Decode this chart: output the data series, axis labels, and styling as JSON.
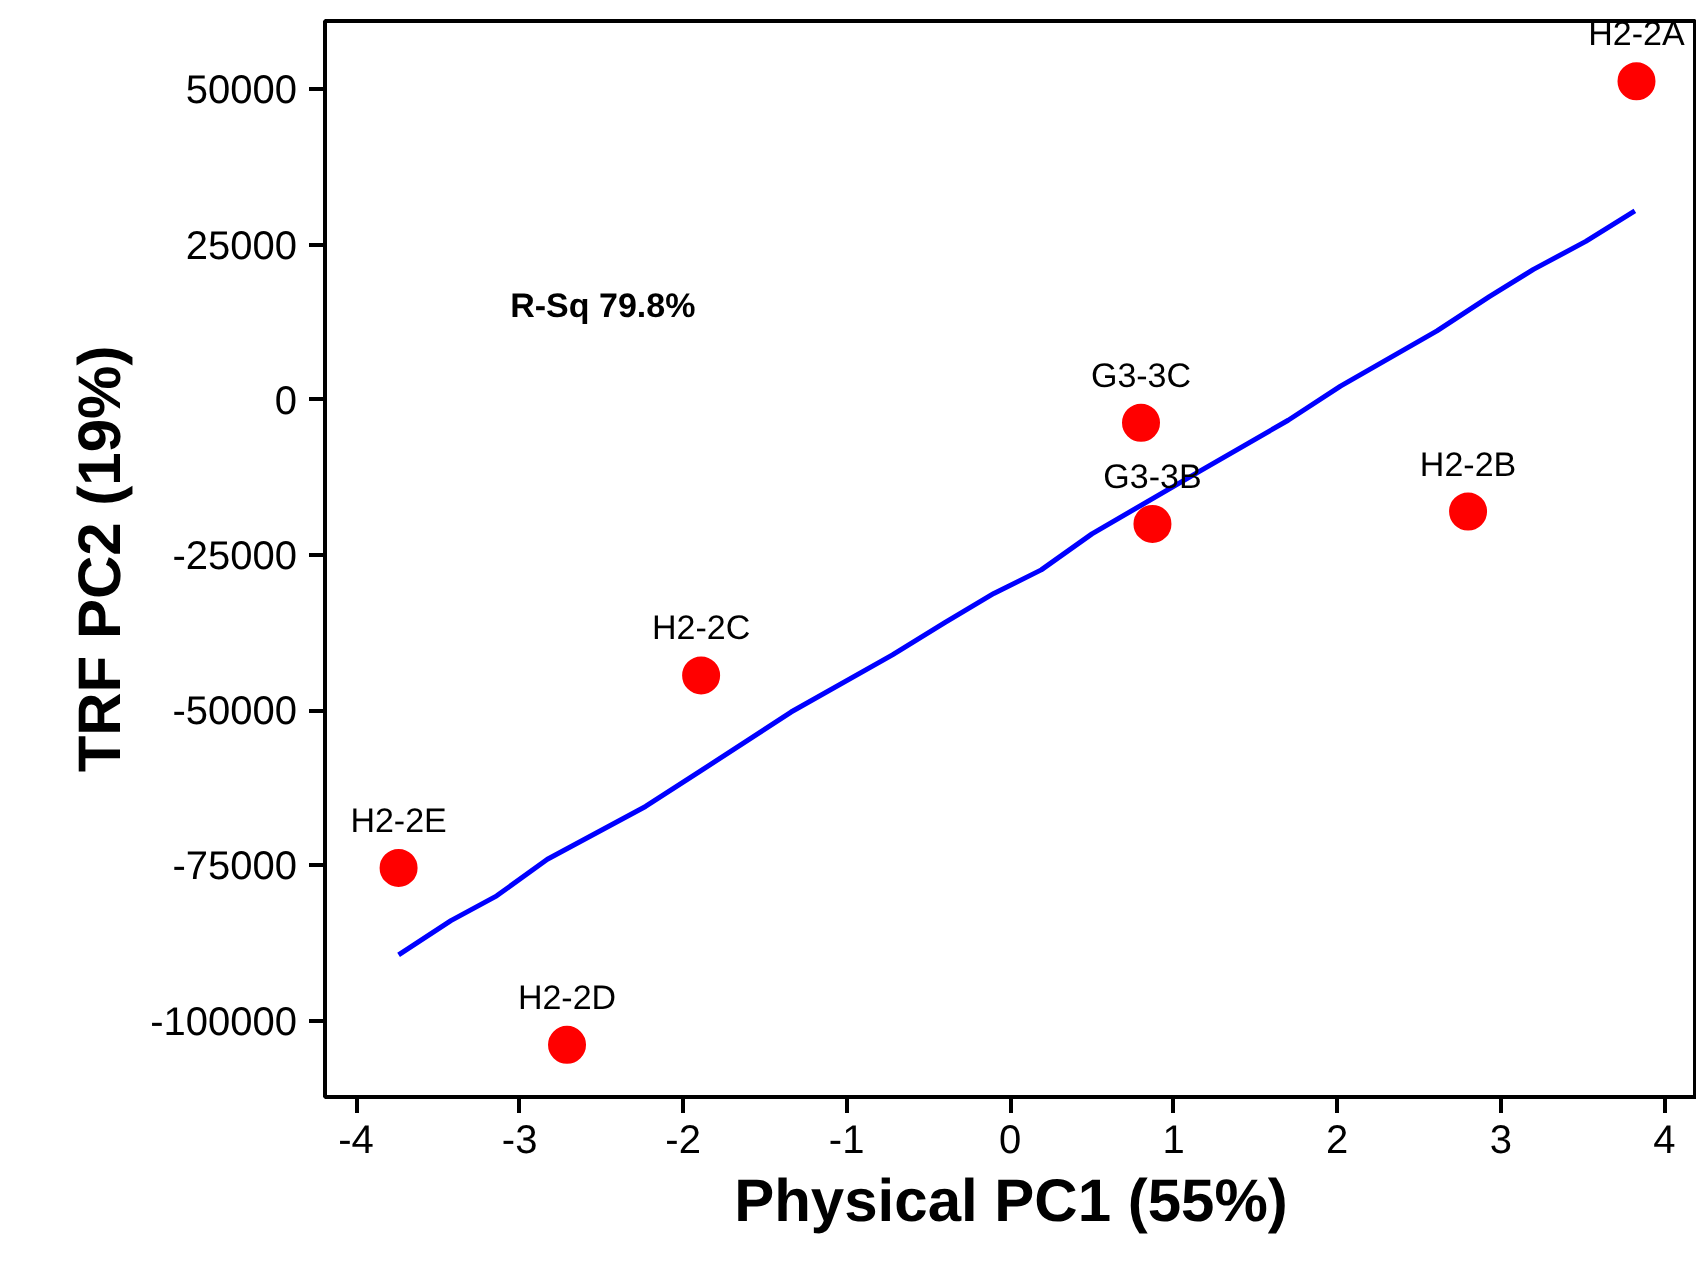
{
  "chart_data": {
    "type": "scatter",
    "xlabel": "Physical PC1 (55%)",
    "ylabel": "TRF PC2 (19%)",
    "xlim": [
      -4.19,
      4.2
    ],
    "ylim": [
      -112300,
      61000
    ],
    "xticks": [
      -4,
      -3,
      -2,
      -1,
      0,
      1,
      2,
      3,
      4
    ],
    "yticks": [
      50000,
      25000,
      0,
      -25000,
      -50000,
      -75000,
      -100000
    ],
    "grid": false,
    "series": [
      {
        "marker": "circle",
        "color": "#ff0000",
        "x": [
          3.83,
          0.8,
          0.87,
          2.8,
          -1.89,
          -3.74,
          -2.71
        ],
        "values": [
          51300,
          -3700,
          -20000,
          -18000,
          -44400,
          -75400,
          -103900
        ]
      },
      {
        "type": "line",
        "color": "#0000ff",
        "line_style": "solid",
        "x": [
          -3.74,
          -3.42,
          -3.14,
          -2.83,
          -2.23,
          -1.9,
          -1.34,
          -0.72,
          -0.4,
          -0.1,
          0.19,
          0.5,
          1.16,
          1.7,
          2.02,
          2.61,
          2.93,
          3.2,
          3.52,
          3.82
        ],
        "values": [
          -89400,
          -83900,
          -79900,
          -74000,
          -65500,
          -59900,
          -50300,
          -41100,
          -35900,
          -31200,
          -27400,
          -21600,
          -11500,
          -3300,
          2200,
          11100,
          16600,
          21000,
          25500,
          30400
        ]
      }
    ],
    "annotations": [
      "R-Sq   79.8%",
      {
        "text": "H2-2A",
        "x": 3.83,
        "y": 51300
      },
      {
        "text": "G3-3C",
        "x": 0.8,
        "y": -3700
      },
      {
        "text": "G3-3B",
        "x": 0.87,
        "y": -20000
      },
      {
        "text": "H2-2B",
        "x": 2.8,
        "y": -18000
      },
      {
        "text": "H2-2C",
        "x": -1.89,
        "y": -44400
      },
      {
        "text": "H2-2E",
        "x": -3.74,
        "y": -75400
      },
      {
        "text": "H2-2D",
        "x": -2.71,
        "y": -103900
      }
    ]
  }
}
